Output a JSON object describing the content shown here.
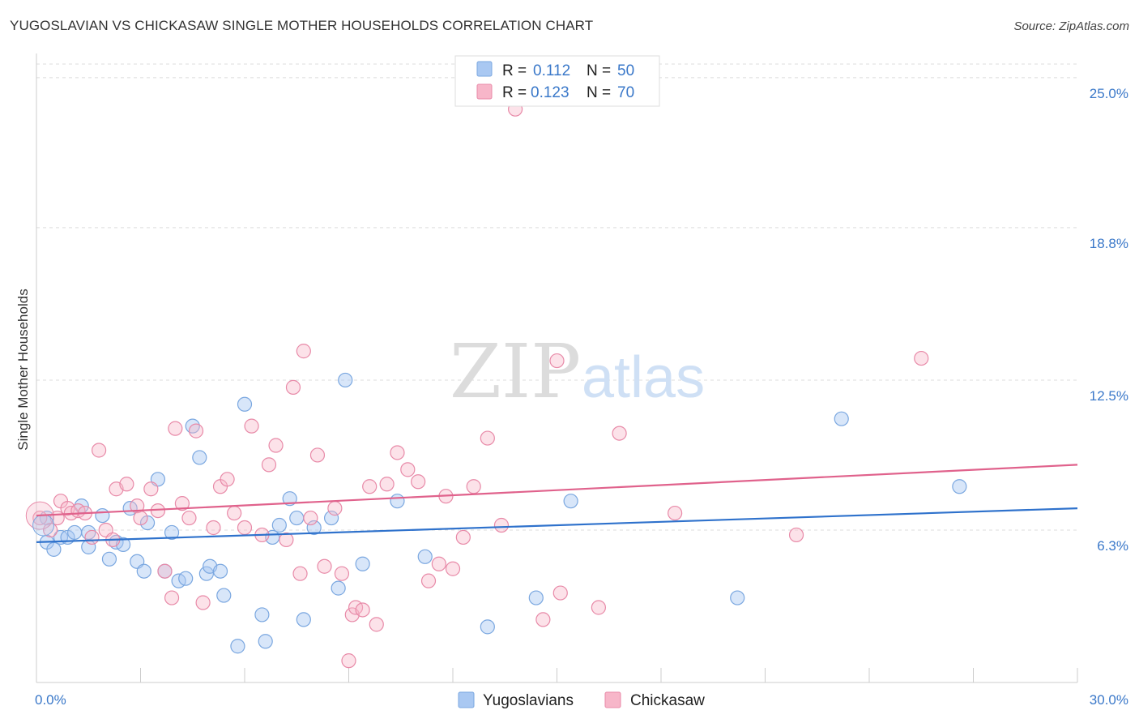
{
  "title": "YUGOSLAVIAN VS CHICKASAW SINGLE MOTHER HOUSEHOLDS CORRELATION CHART",
  "source": "Source: ZipAtlas.com",
  "watermark": {
    "zip": "ZIP",
    "atlas": "atlas"
  },
  "legend": {
    "r_label": "R =",
    "n_label": "N =",
    "rows": [
      {
        "r": "0.112",
        "n": "50",
        "color": "#a9c8f2"
      },
      {
        "r": "0.123",
        "n": "70",
        "color": "#f7b6c9"
      }
    ]
  },
  "colors": {
    "yugoslavian_fill": "#a9c8f2",
    "yugoslavian_line": "#2f72cc",
    "chickasaw_fill": "#f7b6c9",
    "chickasaw_line": "#e0628c",
    "tick_label": "#3a78c9"
  },
  "chart_data": {
    "type": "scatter",
    "title": "YUGOSLAVIAN VS CHICKASAW SINGLE MOTHER HOUSEHOLDS CORRELATION CHART",
    "xlabel": "",
    "ylabel": "Single Mother Households",
    "xlim": [
      0,
      30
    ],
    "ylim": [
      0,
      25.8
    ],
    "x_tick_labels": [
      "0.0%",
      "30.0%"
    ],
    "y_ticks": [
      6.3,
      12.5,
      18.8,
      25.0
    ],
    "y_tick_labels": [
      "6.3%",
      "12.5%",
      "18.8%",
      "25.0%"
    ],
    "grid": true,
    "legend_position": "top-center",
    "series": [
      {
        "name": "Yugoslavians",
        "color": "#a9c8f2",
        "trend": [
          [
            0,
            5.8
          ],
          [
            30,
            7.2
          ]
        ],
        "points": [
          [
            0.3,
            6.8
          ],
          [
            0.3,
            5.8
          ],
          [
            0.5,
            5.5
          ],
          [
            0.7,
            6.0
          ],
          [
            0.9,
            6.0
          ],
          [
            1.1,
            6.2
          ],
          [
            1.5,
            6.2
          ],
          [
            1.3,
            7.3
          ],
          [
            1.5,
            5.6
          ],
          [
            1.9,
            6.9
          ],
          [
            2.1,
            5.1
          ],
          [
            2.3,
            5.8
          ],
          [
            2.5,
            5.7
          ],
          [
            2.7,
            7.2
          ],
          [
            2.9,
            5.0
          ],
          [
            3.1,
            4.6
          ],
          [
            3.2,
            6.6
          ],
          [
            3.5,
            8.4
          ],
          [
            3.7,
            4.6
          ],
          [
            3.9,
            6.2
          ],
          [
            4.1,
            4.2
          ],
          [
            4.3,
            4.3
          ],
          [
            4.5,
            10.6
          ],
          [
            4.7,
            9.3
          ],
          [
            4.9,
            4.5
          ],
          [
            5.0,
            4.8
          ],
          [
            5.3,
            4.6
          ],
          [
            5.4,
            3.6
          ],
          [
            5.8,
            1.5
          ],
          [
            6.0,
            11.5
          ],
          [
            6.5,
            2.8
          ],
          [
            6.6,
            1.7
          ],
          [
            6.8,
            6.0
          ],
          [
            7.0,
            6.5
          ],
          [
            7.3,
            7.6
          ],
          [
            7.5,
            6.8
          ],
          [
            7.7,
            2.6
          ],
          [
            8.0,
            6.4
          ],
          [
            8.5,
            6.8
          ],
          [
            8.7,
            3.9
          ],
          [
            8.9,
            12.5
          ],
          [
            9.4,
            4.9
          ],
          [
            10.4,
            7.5
          ],
          [
            11.2,
            5.2
          ],
          [
            13.0,
            2.3
          ],
          [
            14.4,
            3.5
          ],
          [
            15.4,
            7.5
          ],
          [
            20.2,
            3.5
          ],
          [
            23.2,
            10.9
          ],
          [
            26.6,
            8.1
          ]
        ]
      },
      {
        "name": "Chickasaw",
        "color": "#f7b6c9",
        "trend": [
          [
            0,
            6.9
          ],
          [
            30,
            9.0
          ]
        ],
        "points": [
          [
            0.1,
            6.8
          ],
          [
            0.4,
            6.3
          ],
          [
            0.6,
            6.8
          ],
          [
            0.7,
            7.5
          ],
          [
            0.9,
            7.2
          ],
          [
            1.0,
            7.0
          ],
          [
            1.2,
            7.1
          ],
          [
            1.4,
            7.0
          ],
          [
            1.6,
            6.0
          ],
          [
            1.8,
            9.6
          ],
          [
            2.0,
            6.3
          ],
          [
            2.2,
            5.9
          ],
          [
            2.3,
            8.0
          ],
          [
            2.6,
            8.2
          ],
          [
            2.9,
            7.3
          ],
          [
            3.0,
            6.8
          ],
          [
            3.3,
            8.0
          ],
          [
            3.5,
            7.1
          ],
          [
            3.7,
            4.6
          ],
          [
            3.9,
            3.5
          ],
          [
            4.0,
            10.5
          ],
          [
            4.2,
            7.4
          ],
          [
            4.4,
            6.8
          ],
          [
            4.6,
            10.4
          ],
          [
            4.8,
            3.3
          ],
          [
            5.1,
            6.4
          ],
          [
            5.3,
            8.1
          ],
          [
            5.5,
            8.4
          ],
          [
            5.7,
            7.0
          ],
          [
            6.0,
            6.4
          ],
          [
            6.2,
            10.6
          ],
          [
            6.5,
            6.1
          ],
          [
            6.7,
            9.0
          ],
          [
            6.9,
            9.8
          ],
          [
            7.2,
            5.9
          ],
          [
            7.4,
            12.2
          ],
          [
            7.6,
            4.5
          ],
          [
            7.7,
            13.7
          ],
          [
            7.9,
            6.8
          ],
          [
            8.1,
            9.4
          ],
          [
            8.3,
            4.8
          ],
          [
            8.6,
            7.2
          ],
          [
            8.8,
            4.5
          ],
          [
            9.0,
            0.9
          ],
          [
            9.1,
            2.8
          ],
          [
            9.2,
            3.1
          ],
          [
            9.4,
            3.0
          ],
          [
            9.6,
            8.1
          ],
          [
            9.8,
            2.4
          ],
          [
            10.1,
            8.2
          ],
          [
            10.4,
            9.5
          ],
          [
            10.7,
            8.8
          ],
          [
            11.0,
            8.3
          ],
          [
            11.3,
            4.2
          ],
          [
            11.6,
            4.9
          ],
          [
            11.8,
            7.7
          ],
          [
            12.0,
            4.7
          ],
          [
            12.3,
            6.0
          ],
          [
            12.6,
            8.1
          ],
          [
            13.0,
            10.1
          ],
          [
            13.4,
            6.5
          ],
          [
            13.8,
            23.7
          ],
          [
            14.6,
            2.6
          ],
          [
            15.0,
            13.3
          ],
          [
            15.1,
            3.7
          ],
          [
            16.2,
            3.1
          ],
          [
            16.8,
            10.3
          ],
          [
            18.4,
            7.0
          ],
          [
            21.9,
            6.1
          ],
          [
            25.5,
            13.4
          ]
        ]
      }
    ]
  }
}
